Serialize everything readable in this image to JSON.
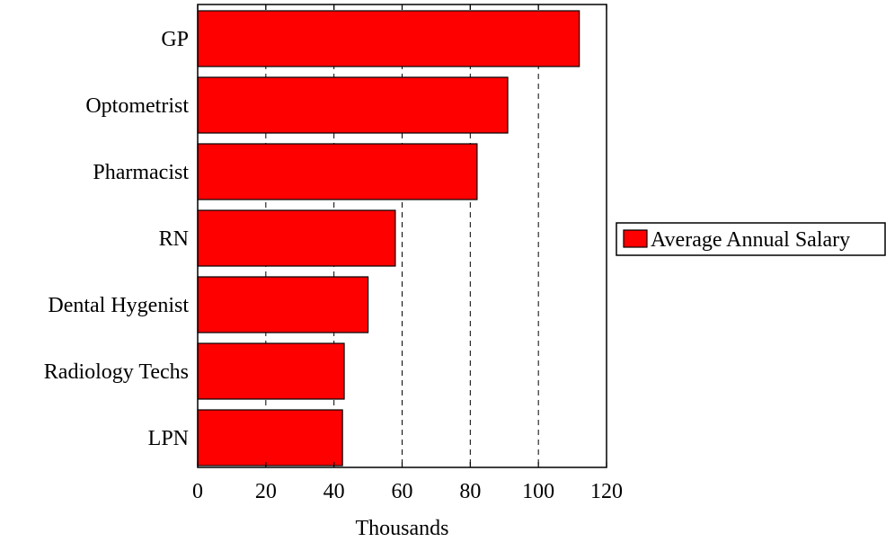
{
  "chart_data": {
    "type": "bar",
    "orientation": "horizontal",
    "categories": [
      "GP",
      "Optometrist",
      "Pharmacist",
      "RN",
      "Dental Hygenist",
      "Radiology Techs",
      "LPN"
    ],
    "series": [
      {
        "name": "Average Annual Salary",
        "values": [
          112,
          91,
          82,
          58,
          50,
          43,
          42.5
        ],
        "color": "#ff0000"
      }
    ],
    "xlabel": "Thousands",
    "ylabel": "",
    "xlim": [
      0,
      120
    ],
    "x_ticks": [
      0,
      20,
      40,
      60,
      80,
      100,
      120
    ],
    "grid": "vertical dashed",
    "legend_position": "right",
    "bar_outline_color": "#000000"
  }
}
